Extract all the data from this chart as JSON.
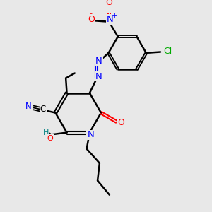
{
  "background_color": "#e8e8e8",
  "atom_colors": {
    "C": "#000000",
    "N": "#0000ff",
    "O": "#ff0000",
    "Cl": "#00aa00",
    "H": "#008080",
    "triple_bond": "#000000"
  },
  "figsize": [
    3.0,
    3.0
  ],
  "dpi": 100,
  "xlim": [
    0,
    10
  ],
  "ylim": [
    0,
    10
  ]
}
